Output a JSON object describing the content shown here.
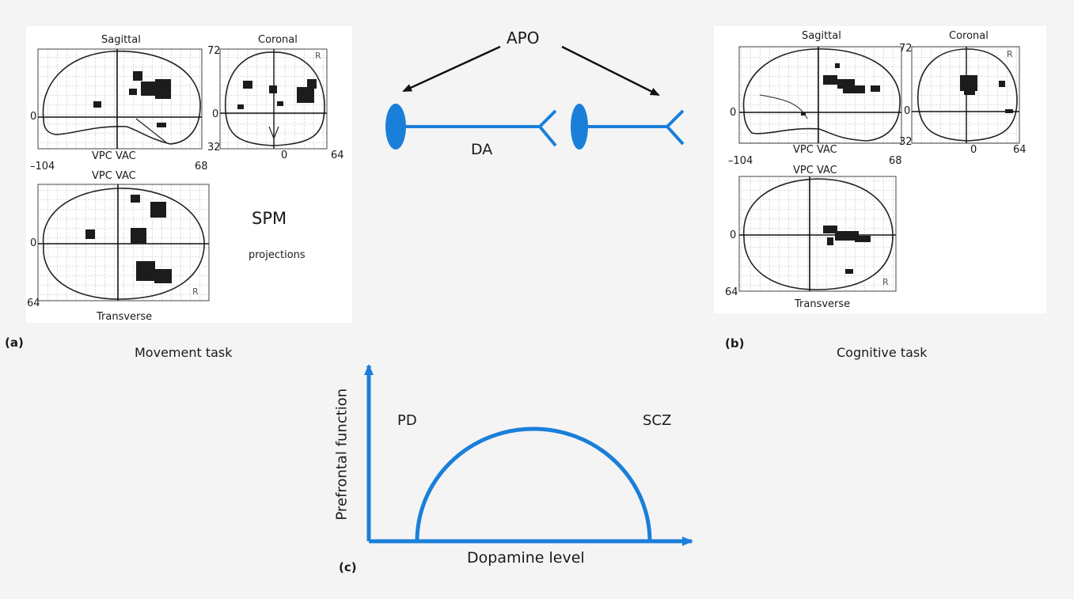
{
  "panel_a": {
    "tag": "(a)",
    "caption": "Movement task",
    "sagittal": "Sagittal",
    "coronal": "Coronal",
    "transverse": "Transverse",
    "vpc_vac_1": "VPC VAC",
    "vpc_vac_2": "VPC VAC",
    "tick_0_sag": "0",
    "tick_m104": "–104",
    "tick_68": "68",
    "tick_72": "72",
    "tick_0_cor": "0",
    "tick_32": "32",
    "tick_0_cor_x": "0",
    "tick_64_cor": "64",
    "tick_0_tra": "0",
    "tick_64_tra": "64",
    "spm": "SPM",
    "projections": "projections",
    "r_mark_1": "R",
    "r_mark_2": "R"
  },
  "panel_b": {
    "tag": "(b)",
    "caption": "Cognitive task",
    "sagittal": "Sagittal",
    "coronal": "Coronal",
    "transverse": "Transverse",
    "vpc_vac_1": "VPC VAC",
    "vpc_vac_2": "VPC VAC",
    "tick_0_sag": "0",
    "tick_m104": "–104",
    "tick_68": "68",
    "tick_72": "72",
    "tick_0_cor": "0",
    "tick_32": "32",
    "tick_0_cor_x": "0",
    "tick_64_cor": "64",
    "tick_0_tra": "0",
    "tick_64_tra": "64",
    "r_mark_1": "R",
    "r_mark_2": "R"
  },
  "synapse": {
    "apo": "APO",
    "da": "DA",
    "color": "#1a7fd9"
  },
  "panel_c": {
    "tag": "(c)",
    "xlabel": "Dopamine level",
    "ylabel": "Prefrontal function",
    "left_label": "PD",
    "right_label": "SCZ",
    "color": "#1a7fd9"
  }
}
